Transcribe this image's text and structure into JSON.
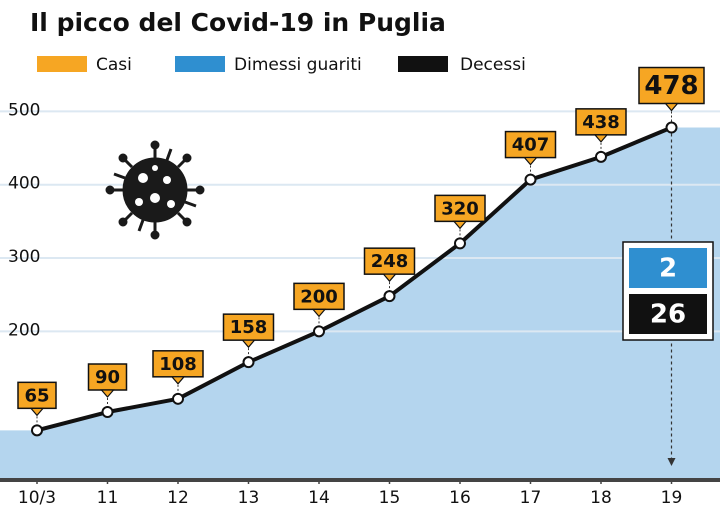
{
  "chart_data": {
    "type": "line",
    "title": "Il picco del Covid-19 in Puglia",
    "categories": [
      "10/3",
      "11",
      "12",
      "13",
      "14",
      "15",
      "16",
      "17",
      "18",
      "19"
    ],
    "series": [
      {
        "name": "Casi",
        "color": "#f6a623",
        "values": [
          65,
          90,
          108,
          158,
          200,
          248,
          320,
          407,
          438,
          478
        ]
      },
      {
        "name": "Dimessi guariti",
        "color": "#2f8fd0",
        "values": [
          null,
          null,
          null,
          null,
          null,
          null,
          null,
          null,
          null,
          2
        ]
      },
      {
        "name": "Decessi",
        "color": "#111111",
        "values": [
          null,
          null,
          null,
          null,
          null,
          null,
          null,
          null,
          null,
          26
        ]
      }
    ],
    "line_color": "#111111",
    "area_color": "#b4d5ee",
    "ylim": [
      0,
      536
    ],
    "yticks": [
      200,
      300,
      400,
      500
    ],
    "grid": true
  }
}
